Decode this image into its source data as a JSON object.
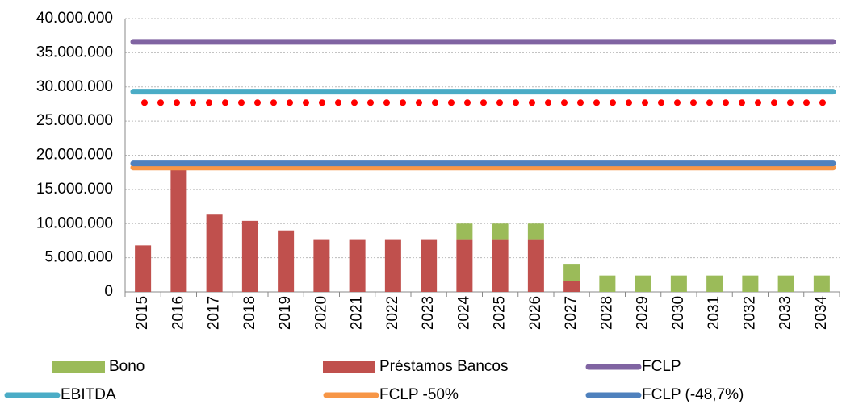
{
  "chart_data": {
    "type": "bar",
    "categories": [
      "2015",
      "2016",
      "2017",
      "2018",
      "2019",
      "2020",
      "2021",
      "2022",
      "2023",
      "2024",
      "2025",
      "2026",
      "2027",
      "2028",
      "2029",
      "2030",
      "2031",
      "2032",
      "2033",
      "2034"
    ],
    "series": [
      {
        "name": "Préstamos Bancos",
        "color": "#c0504d",
        "type": "bar",
        "values": [
          6800000,
          17900000,
          11300000,
          10400000,
          9000000,
          7600000,
          7600000,
          7600000,
          7600000,
          7600000,
          7600000,
          7600000,
          1650000,
          0,
          0,
          0,
          0,
          0,
          0,
          0
        ]
      },
      {
        "name": "Bono",
        "color": "#9bbb59",
        "type": "bar",
        "values": [
          0,
          0,
          0,
          0,
          0,
          0,
          0,
          0,
          0,
          2400000,
          2400000,
          2400000,
          2350000,
          2400000,
          2400000,
          2400000,
          2400000,
          2400000,
          2400000,
          2400000
        ]
      },
      {
        "name": "FCLP",
        "color": "#8064a2",
        "type": "line",
        "values": [
          36600000,
          36600000,
          36600000,
          36600000,
          36600000,
          36600000,
          36600000,
          36600000,
          36600000,
          36600000,
          36600000,
          36600000,
          36600000,
          36600000,
          36600000,
          36600000,
          36600000,
          36600000,
          36600000,
          36600000
        ]
      },
      {
        "name": "EBITDA",
        "color": "#4bacc6",
        "type": "line",
        "values": [
          29300000,
          29300000,
          29300000,
          29300000,
          29300000,
          29300000,
          29300000,
          29300000,
          29300000,
          29300000,
          29300000,
          29300000,
          29300000,
          29300000,
          29300000,
          29300000,
          29300000,
          29300000,
          29300000,
          29300000
        ]
      },
      {
        "color": "#ff0000",
        "type": "line",
        "style": "dotted",
        "values": [
          27700000,
          27700000,
          27700000,
          27700000,
          27700000,
          27700000,
          27700000,
          27700000,
          27700000,
          27700000,
          27700000,
          27700000,
          27700000,
          27700000,
          27700000,
          27700000,
          27700000,
          27700000,
          27700000,
          27700000
        ]
      },
      {
        "name": "FCLP -50%",
        "color": "#f79646",
        "type": "line",
        "values": [
          18200000,
          18200000,
          18200000,
          18200000,
          18200000,
          18200000,
          18200000,
          18200000,
          18200000,
          18200000,
          18200000,
          18200000,
          18200000,
          18200000,
          18200000,
          18200000,
          18200000,
          18200000,
          18200000,
          18200000
        ]
      },
      {
        "name": "FCLP (-48,7%)",
        "color": "#4f81bd",
        "type": "line",
        "values": [
          18800000,
          18800000,
          18800000,
          18800000,
          18800000,
          18800000,
          18800000,
          18800000,
          18800000,
          18800000,
          18800000,
          18800000,
          18800000,
          18800000,
          18800000,
          18800000,
          18800000,
          18800000,
          18800000,
          18800000
        ]
      }
    ],
    "ylim": [
      0,
      40000000
    ],
    "yticks": [
      0,
      {
        "value": 5000000,
        "label": "5.000.000"
      },
      {
        "value": 10000000,
        "label": "10.000.000"
      },
      {
        "value": 15000000,
        "label": "15.000.000"
      },
      {
        "value": 20000000,
        "label": "20.000.000"
      },
      {
        "value": 25000000,
        "label": "25.000.000"
      },
      {
        "value": 30000000,
        "label": "30.000.000"
      },
      {
        "value": 35000000,
        "label": "35.000.000"
      },
      {
        "value": 40000000,
        "label": "40.000.000"
      }
    ],
    "grid": true
  }
}
